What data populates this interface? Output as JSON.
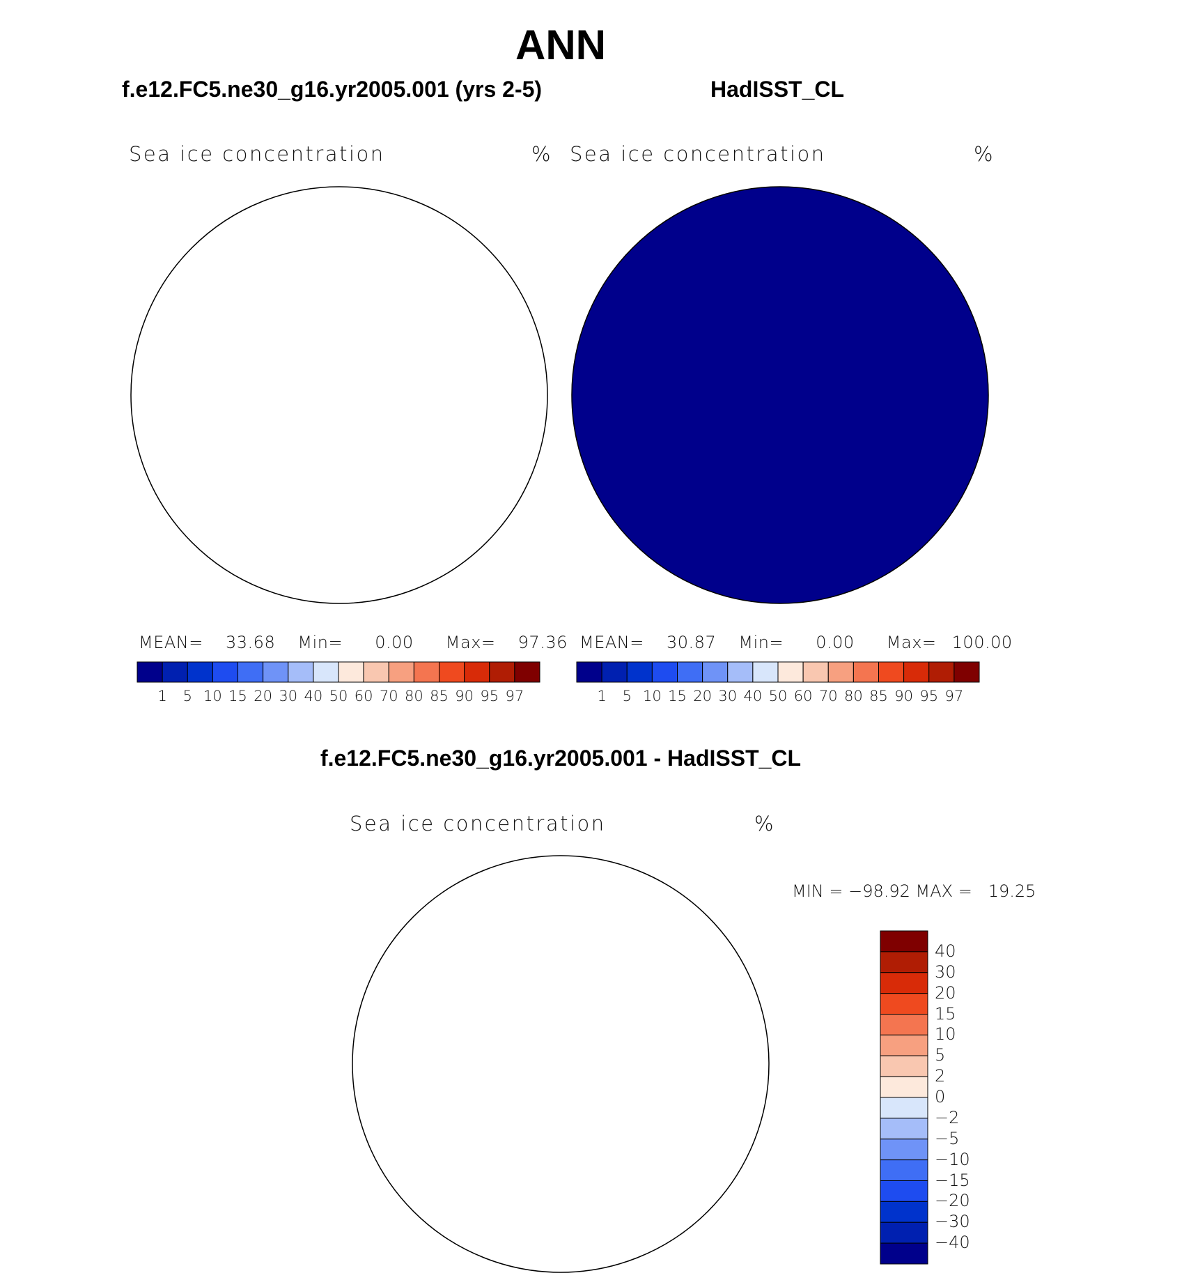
{
  "figure": {
    "title": "ANN",
    "left_case_title": "f.e12.FC5.ne30_g16.yr2005.001 (yrs 2-5)",
    "right_case_title": "HadISST_CL",
    "diff_title": "f.e12.FC5.ne30_g16.yr2005.001 - HadISST_CL"
  },
  "panels": [
    {
      "name": "model",
      "variable": "Sea ice concentration",
      "units": "%",
      "stats": {
        "mean_label": "MEAN=",
        "mean": "33.68",
        "min_label": "Min=",
        "min": "0.00",
        "max_label": "Max=",
        "max": "97.36"
      }
    },
    {
      "name": "observation",
      "variable": "Sea ice concentration",
      "units": "%",
      "stats": {
        "mean_label": "MEAN=",
        "mean": "30.87",
        "min_label": "Min=",
        "min": "0.00",
        "max_label": "Max=",
        "max": "100.00"
      }
    },
    {
      "name": "difference",
      "variable": "Sea ice concentration",
      "units": "%",
      "minmax": "MIN = −98.92 MAX =   19.25"
    }
  ],
  "colorbars": {
    "absolute": {
      "labels": [
        "1",
        "5",
        "10",
        "15",
        "20",
        "30",
        "40",
        "50",
        "60",
        "70",
        "80",
        "85",
        "90",
        "95",
        "97"
      ],
      "colors": [
        "#00008b",
        "#0020b0",
        "#0033cc",
        "#1e4cf0",
        "#3f6ef5",
        "#6f93f7",
        "#a5bdf9",
        "#d8e6fb",
        "#fde9dc",
        "#f9c7b0",
        "#f7a080",
        "#f47550",
        "#ef4a1f",
        "#d82b08",
        "#b01d04",
        "#7f0000"
      ]
    },
    "difference": {
      "labels": [
        "40",
        "30",
        "20",
        "15",
        "10",
        "5",
        "2",
        "0",
        "−2",
        "−5",
        "−10",
        "−15",
        "−20",
        "−30",
        "−40"
      ],
      "colors": [
        "#7f0000",
        "#b01d04",
        "#d82b08",
        "#ef4a1f",
        "#f47550",
        "#f7a080",
        "#f9c7b0",
        "#fde9dc",
        "#d8e6fb",
        "#a5bdf9",
        "#6f93f7",
        "#3f6ef5",
        "#1e4cf0",
        "#0033cc",
        "#0020b0",
        "#00008b"
      ]
    }
  },
  "maps": {
    "projection": "south polar stereographic",
    "fields": [
      "model sea ice concentration",
      "observed sea ice concentration",
      "model minus observation"
    ]
  }
}
